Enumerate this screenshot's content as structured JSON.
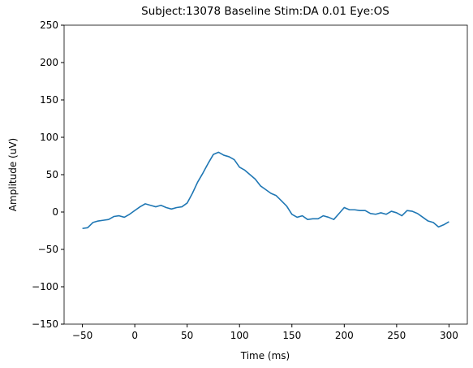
{
  "chart_data": {
    "type": "line",
    "title": "Subject:13078 Baseline Stim:DA 0.01 Eye:OS",
    "x_label": "Time (ms)",
    "y_label": "Amplitude (uV)",
    "x": [
      -50,
      -45,
      -40,
      -35,
      -30,
      -25,
      -20,
      -15,
      -10,
      -5,
      0,
      5,
      10,
      15,
      20,
      25,
      30,
      35,
      40,
      45,
      50,
      55,
      60,
      65,
      70,
      75,
      80,
      85,
      90,
      95,
      100,
      105,
      110,
      115,
      120,
      125,
      130,
      135,
      140,
      145,
      150,
      155,
      160,
      165,
      170,
      175,
      180,
      185,
      190,
      195,
      200,
      205,
      210,
      215,
      220,
      225,
      230,
      235,
      240,
      245,
      250,
      255,
      260,
      265,
      270,
      275,
      280,
      285,
      290,
      295,
      300
    ],
    "series": [
      {
        "name": "Amplitude",
        "color": "#1f77b4",
        "values": [
          -22,
          -21,
          -14,
          -12,
          -11,
          -10,
          -6,
          -5,
          -7,
          -3,
          2,
          7,
          11,
          9,
          7,
          9,
          6,
          4,
          6,
          7,
          12,
          25,
          40,
          52,
          65,
          77,
          80,
          76,
          74,
          70,
          60,
          56,
          50,
          44,
          35,
          30,
          25,
          22,
          15,
          8,
          -3,
          -7,
          -5,
          -10,
          -9,
          -9,
          -5,
          -7,
          -10,
          -2,
          6,
          3,
          3,
          2,
          2,
          -2,
          -3,
          -1,
          -3,
          1,
          -1,
          -5,
          2,
          1,
          -2,
          -7,
          -12,
          -14,
          -20,
          -17,
          -13
        ]
      }
    ],
    "xlim": [
      -67.5,
      317.5
    ],
    "ylim": [
      -150,
      250
    ],
    "xticks": [
      {
        "value": -50,
        "label": "−50"
      },
      0,
      50,
      100,
      150,
      200,
      250,
      300
    ],
    "yticks": [
      {
        "value": -150,
        "label": "−150"
      },
      {
        "value": -100,
        "label": "−100"
      },
      {
        "value": -50,
        "label": "−50"
      },
      0,
      50,
      100,
      150,
      200,
      250
    ]
  }
}
